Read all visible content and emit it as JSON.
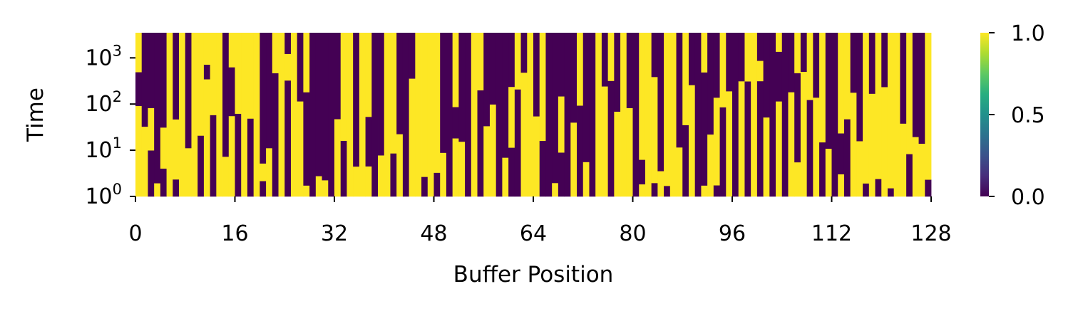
{
  "chart_data": {
    "type": "heatmap",
    "title": "",
    "xlabel": "Buffer Position",
    "ylabel": "Time",
    "x_range": [
      0,
      128
    ],
    "x_ticks": [
      "0",
      "16",
      "32",
      "48",
      "64",
      "80",
      "96",
      "112",
      "128"
    ],
    "y_scale": "log",
    "y_range": [
      1,
      3500
    ],
    "y_ticks": [
      {
        "value": 1,
        "base": "10",
        "exp": "0"
      },
      {
        "value": 10,
        "base": "10",
        "exp": "1"
      },
      {
        "value": 100,
        "base": "10",
        "exp": "2"
      },
      {
        "value": 1000,
        "base": "10",
        "exp": "3"
      }
    ],
    "colormap": "viridis",
    "value_range": [
      0.0,
      1.0
    ],
    "colorbar_ticks": [
      "0.0",
      "0.5",
      "1.0"
    ],
    "colors": {
      "low": "#440154",
      "high": "#fde725"
    },
    "grid": false,
    "columns": [
      [
        1,
        0,
        1
      ],
      [
        1,
        0
      ],
      [
        0,
        1,
        0
      ],
      [
        1,
        0
      ],
      [
        0,
        1,
        0
      ],
      [
        1
      ],
      [
        0,
        1,
        0
      ],
      [
        1
      ],
      [
        1,
        0
      ],
      [
        1
      ],
      [
        0,
        1
      ],
      [
        1,
        0,
        1
      ],
      [
        0,
        1
      ],
      [
        1
      ],
      [
        1,
        0
      ],
      [
        1,
        0,
        1
      ],
      [
        0,
        1
      ],
      [
        1
      ],
      [
        0,
        1
      ],
      [
        1
      ],
      [
        0,
        1,
        0
      ],
      [
        1,
        0
      ],
      [
        0,
        1
      ],
      [
        1
      ],
      [
        0,
        1,
        0
      ],
      [
        1
      ],
      [
        1,
        0
      ],
      [
        1,
        0,
        1
      ],
      [
        0
      ],
      [
        1,
        0
      ],
      [
        1,
        0
      ],
      [
        0
      ],
      [
        1,
        0
      ],
      [
        0,
        1
      ],
      [
        1
      ],
      [
        1,
        0
      ],
      [
        1
      ],
      [
        1,
        0,
        1
      ],
      [
        0
      ],
      [
        1,
        0
      ],
      [
        1
      ],
      [
        0,
        1
      ],
      [
        1,
        0
      ],
      [
        0
      ],
      [
        1,
        0
      ],
      [
        1
      ],
      [
        0,
        1
      ],
      [
        1
      ],
      [
        0,
        1
      ],
      [
        1,
        0
      ],
      [
        0
      ],
      [
        1,
        0,
        1
      ],
      [
        1,
        0
      ],
      [
        0
      ],
      [
        1
      ],
      [
        0,
        1
      ],
      [
        1,
        0
      ],
      [
        1,
        0
      ],
      [
        0
      ],
      [
        1,
        0
      ],
      [
        0,
        1,
        0
      ],
      [
        0,
        1
      ],
      [
        1,
        0
      ],
      [
        1
      ],
      [
        1,
        0
      ],
      [
        0,
        1
      ],
      [
        0
      ],
      [
        1,
        0
      ],
      [
        0,
        1,
        0
      ],
      [
        0
      ],
      [
        1,
        0
      ],
      [
        0,
        1
      ],
      [
        1,
        0
      ],
      [
        0
      ],
      [
        1
      ],
      [
        1,
        0
      ],
      [
        0,
        1
      ],
      [
        1,
        0
      ],
      [
        1
      ],
      [
        1,
        0
      ],
      [
        0
      ],
      [
        1,
        0,
        1
      ],
      [
        1
      ],
      [
        0,
        1,
        0
      ],
      [
        1,
        0
      ],
      [
        0,
        1
      ],
      [
        1
      ],
      [
        1,
        0
      ],
      [
        0,
        1
      ],
      [
        1,
        0
      ],
      [
        0
      ],
      [
        1,
        0,
        1
      ],
      [
        1,
        0
      ],
      [
        0,
        1,
        0
      ],
      [
        0,
        1
      ],
      [
        1,
        0
      ],
      [
        0
      ],
      [
        1,
        0
      ],
      [
        0,
        1
      ],
      [
        1
      ],
      [
        0,
        1,
        0
      ],
      [
        1,
        0
      ],
      [
        0
      ],
      [
        1,
        0,
        1
      ],
      [
        0
      ],
      [
        1,
        0
      ],
      [
        1,
        0,
        1
      ],
      [
        1,
        0
      ],
      [
        0,
        1
      ],
      [
        1,
        0
      ],
      [
        0,
        1
      ],
      [
        1,
        0
      ],
      [
        0
      ],
      [
        1,
        0,
        1
      ],
      [
        0,
        1
      ],
      [
        1,
        0
      ],
      [
        1,
        0
      ],
      [
        0,
        1
      ],
      [
        1,
        0
      ],
      [
        0,
        1
      ],
      [
        1,
        0
      ],
      [
        0,
        1
      ],
      [
        1
      ],
      [
        1,
        0
      ],
      [
        0,
        1
      ],
      [
        1,
        0
      ],
      [
        1,
        0
      ],
      [
        0,
        1
      ]
    ]
  }
}
